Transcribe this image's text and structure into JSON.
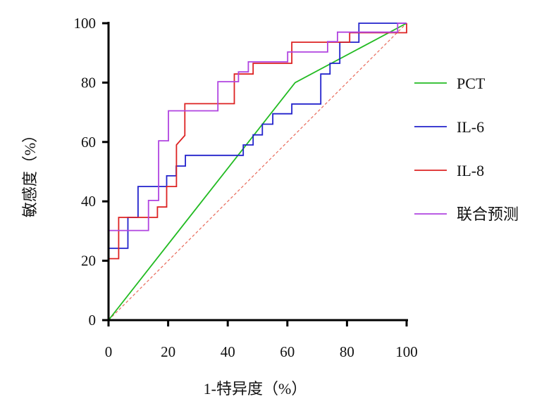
{
  "chart_data": {
    "type": "line",
    "title": "",
    "xlabel": "1-特异度（%）",
    "ylabel": "敏感度（%）",
    "xlim": [
      0,
      100
    ],
    "ylim": [
      0,
      100
    ],
    "xticks": [
      "0",
      "20",
      "40",
      "60",
      "80",
      "100"
    ],
    "yticks": [
      "0",
      "20",
      "40",
      "60",
      "80",
      "100"
    ],
    "grid": false,
    "legend_position": "right",
    "reference_line": {
      "name": "reference",
      "x": [
        0,
        100
      ],
      "y": [
        0,
        100
      ],
      "color": "#e86a5a",
      "style": "dashed"
    },
    "series": [
      {
        "name": "PCT",
        "color": "#22bb22",
        "x": [
          0,
          62.6,
          100
        ],
        "y": [
          0,
          80,
          100
        ]
      },
      {
        "name": "IL-6",
        "color": "#2222cc",
        "x": [
          0,
          0,
          6.5,
          6.5,
          9.9,
          9.9,
          19.5,
          19.5,
          22.7,
          22.7,
          25.8,
          25.8,
          45.2,
          45.2,
          48.5,
          48.5,
          51.6,
          51.6,
          55.1,
          55.1,
          61.5,
          61.5,
          71.2,
          71.2,
          74.3,
          74.3,
          77.6,
          77.6,
          84,
          84,
          100
        ],
        "y": [
          0,
          24.2,
          24.2,
          34.6,
          34.6,
          45,
          45,
          48.6,
          48.6,
          51.9,
          51.9,
          55.5,
          55.5,
          59,
          59,
          62.4,
          62.4,
          66,
          66,
          69.5,
          69.5,
          72.8,
          72.8,
          82.9,
          82.9,
          86.5,
          86.5,
          93.6,
          93.6,
          100,
          100
        ]
      },
      {
        "name": "IL-8",
        "color": "#dd2222",
        "x": [
          0,
          0,
          3.4,
          3.4,
          16.4,
          16.4,
          19.5,
          19.5,
          22.8,
          22.8,
          25.6,
          25.6,
          42.2,
          42.2,
          48.5,
          48.5,
          61.5,
          61.5,
          80.9,
          80.9,
          100,
          100
        ],
        "y": [
          0,
          20.7,
          20.7,
          34.6,
          34.6,
          38.1,
          38.1,
          45,
          45,
          59,
          62.2,
          72.9,
          72.9,
          82.9,
          82.9,
          86.5,
          86.5,
          93.6,
          93.6,
          96.8,
          96.8,
          100
        ]
      },
      {
        "name": "联合预测",
        "color": "#b044e0",
        "x": [
          0,
          0,
          13.4,
          13.4,
          16.8,
          16.8,
          20.1,
          20.1,
          36.7,
          36.7,
          43.6,
          43.6,
          46.9,
          46.9,
          60.1,
          60.1,
          73.5,
          73.5,
          76.8,
          76.8,
          97,
          97,
          100
        ],
        "y": [
          0,
          30.2,
          30.2,
          40.3,
          40.3,
          60.4,
          60.4,
          70.5,
          70.5,
          80.3,
          80.3,
          83.6,
          83.6,
          87,
          87,
          90.3,
          90.3,
          93.8,
          93.8,
          97,
          97,
          100,
          100
        ]
      }
    ]
  }
}
